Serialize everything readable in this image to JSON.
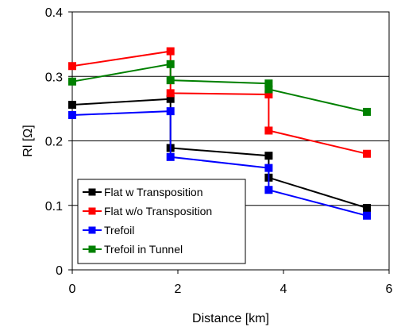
{
  "chart_data": {
    "type": "line",
    "xlabel": "Distance [km]",
    "ylabel": "Rl [Ω]",
    "xlim": [
      0,
      6
    ],
    "ylim": [
      0,
      0.4
    ],
    "x_ticks": [
      "0",
      "2",
      "4",
      "6"
    ],
    "x_tick_values": [
      0,
      2,
      4,
      6
    ],
    "y_ticks": [
      "0",
      "0.1",
      "0.2",
      "0.3",
      "0.4"
    ],
    "y_tick_values": [
      0,
      0.1,
      0.2,
      0.3,
      0.4
    ],
    "grid": "horizontal major gridlines",
    "legend_position": "bottom-left",
    "series": [
      {
        "name": "Flat w Transposition",
        "color": "#000000",
        "points": [
          [
            0,
            0.256
          ],
          [
            1.86,
            0.265
          ],
          [
            1.86,
            0.189
          ],
          [
            3.72,
            0.177
          ],
          [
            3.72,
            0.143
          ],
          [
            5.58,
            0.096
          ]
        ]
      },
      {
        "name": "Flat w/o Transposition",
        "color": "#ff0000",
        "points": [
          [
            0,
            0.316
          ],
          [
            1.86,
            0.339
          ],
          [
            1.86,
            0.274
          ],
          [
            3.72,
            0.272
          ],
          [
            3.72,
            0.216
          ],
          [
            5.58,
            0.18
          ]
        ]
      },
      {
        "name": "Trefoil",
        "color": "#0000ff",
        "points": [
          [
            0,
            0.24
          ],
          [
            1.86,
            0.246
          ],
          [
            1.86,
            0.175
          ],
          [
            3.72,
            0.158
          ],
          [
            3.72,
            0.124
          ],
          [
            5.58,
            0.084
          ]
        ]
      },
      {
        "name": "Trefoil in Tunnel",
        "color": "#008000",
        "points": [
          [
            0,
            0.292
          ],
          [
            1.86,
            0.319
          ],
          [
            1.86,
            0.294
          ],
          [
            3.72,
            0.289
          ],
          [
            3.72,
            0.28
          ],
          [
            5.58,
            0.245
          ]
        ]
      }
    ]
  }
}
